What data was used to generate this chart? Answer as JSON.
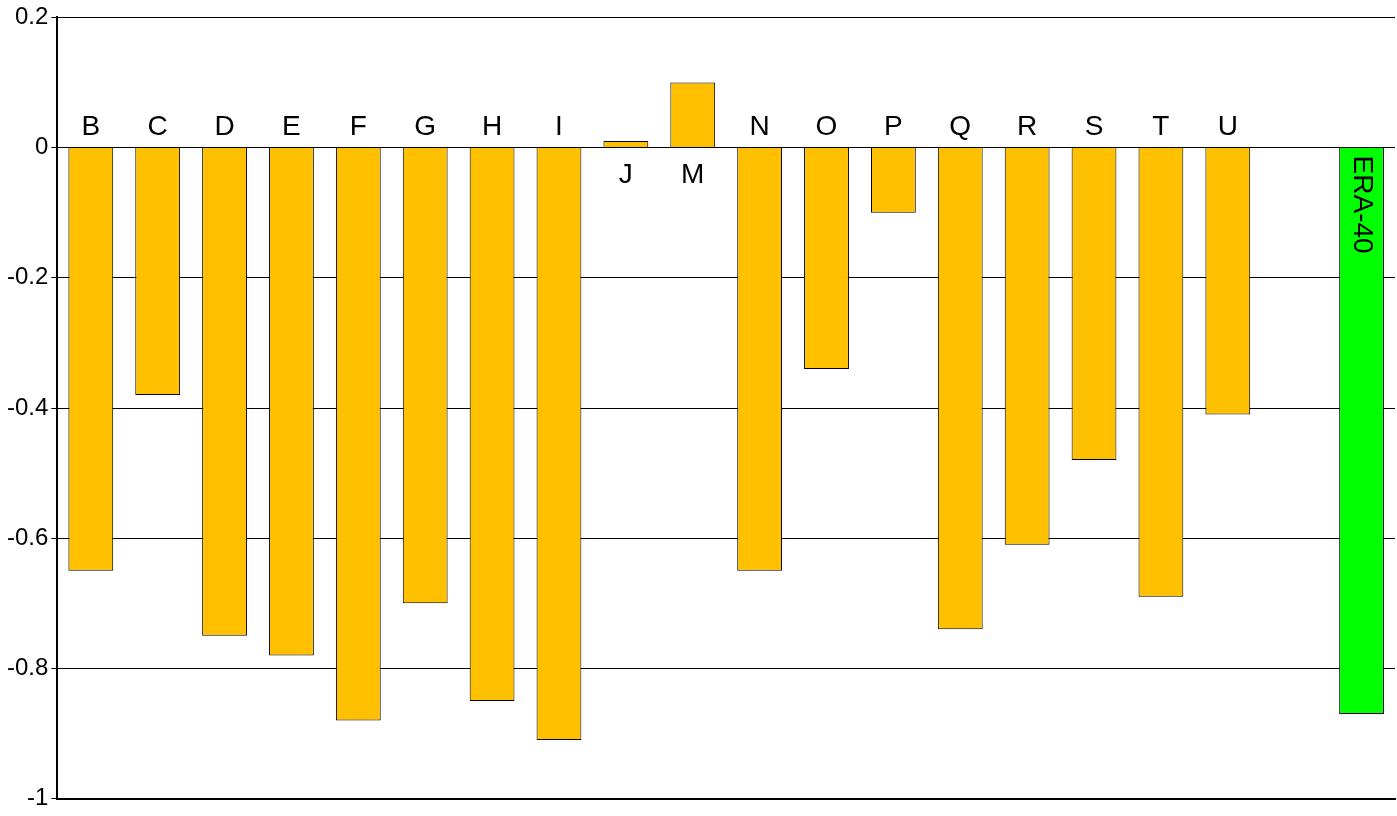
{
  "chart_data": {
    "type": "bar",
    "categories": [
      "B",
      "C",
      "D",
      "E",
      "F",
      "G",
      "H",
      "I",
      "J",
      "M",
      "N",
      "O",
      "P",
      "Q",
      "R",
      "S",
      "T",
      "U",
      null,
      "ERA-40"
    ],
    "values": [
      -0.65,
      -0.38,
      -0.75,
      -0.78,
      -0.88,
      -0.7,
      -0.85,
      -0.91,
      0.01,
      0.1,
      -0.65,
      -0.34,
      -0.1,
      -0.74,
      -0.61,
      -0.48,
      -0.69,
      -0.41,
      null,
      -0.87
    ],
    "colors": [
      "#ffc000",
      "#ffc000",
      "#ffc000",
      "#ffc000",
      "#ffc000",
      "#ffc000",
      "#ffc000",
      "#ffc000",
      "#ffc000",
      "#ffc000",
      "#ffc000",
      "#ffc000",
      "#ffc000",
      "#ffc000",
      "#ffc000",
      "#ffc000",
      "#ffc000",
      "#ffc000",
      "#ffc000",
      "#00ff00"
    ],
    "ylim": [
      -1,
      0.2
    ],
    "yticks": [
      -1,
      -0.8,
      -0.6,
      -0.4,
      -0.2,
      0,
      0.2
    ],
    "grid": "y",
    "legend": false
  }
}
